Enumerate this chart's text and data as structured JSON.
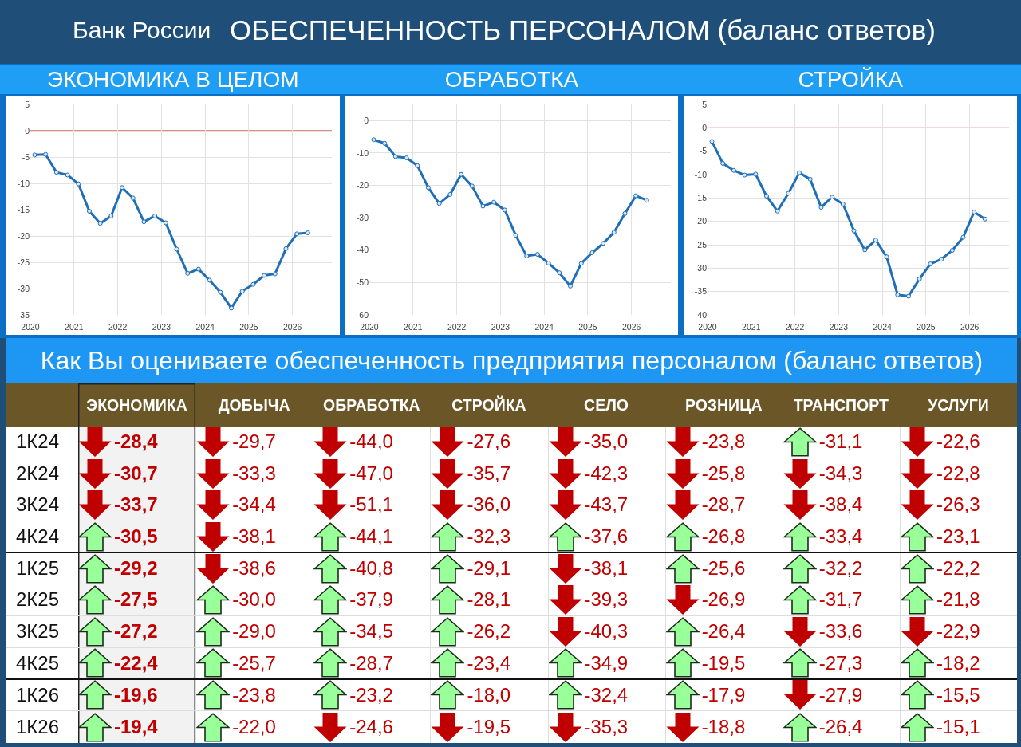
{
  "chart_data": [
    {
      "type": "other",
      "title": "ОБЕСПЕЧЕННОСТЬ ПЕРСОНАЛОМ (баланс ответов)",
      "annotations": [
        "Банк России"
      ]
    },
    {
      "type": "line",
      "title": "ЭКОНОМИКА В ЦЕЛОМ",
      "x": [
        2020.1,
        2020.35,
        2020.6,
        2020.85,
        2021.1,
        2021.35,
        2021.6,
        2021.85,
        2022.1,
        2022.35,
        2022.6,
        2022.85,
        2023.1,
        2023.35,
        2023.6,
        2023.85,
        2024.1,
        2024.35,
        2024.6,
        2024.85,
        2025.1,
        2025.35,
        2025.6,
        2025.85,
        2026.1,
        2026.35
      ],
      "series": [
        {
          "color": "#1f6fb8",
          "values": [
            -4.6,
            -4.5,
            -7.9,
            -8.4,
            -10.1,
            -15.3,
            -17.6,
            -16.2,
            -10.8,
            -12.8,
            -17.3,
            -16.2,
            -17.5,
            -22.5,
            -27.1,
            -26.3,
            -28.4,
            -30.7,
            -33.7,
            -30.5,
            -29.2,
            -27.5,
            -27.2,
            -22.4,
            -19.6,
            -19.4
          ]
        }
      ],
      "xlim": [
        2020,
        2026.9
      ],
      "xticks": [
        2020,
        2021,
        2022,
        2023,
        2024,
        2025,
        2026
      ],
      "ylim": [
        -35,
        5
      ],
      "yticks": [
        -35,
        -30,
        -25,
        -20,
        -15,
        -10,
        -5,
        0,
        5
      ],
      "grid": true,
      "marker": "circle",
      "line_style": "solid",
      "ref_lines": [
        {
          "axis": "y",
          "value": 0,
          "color": "#e06060"
        }
      ]
    },
    {
      "type": "line",
      "title": "ОБРАБОТКА",
      "x": [
        2020.1,
        2020.35,
        2020.6,
        2020.85,
        2021.1,
        2021.35,
        2021.6,
        2021.85,
        2022.1,
        2022.35,
        2022.6,
        2022.85,
        2023.1,
        2023.35,
        2023.6,
        2023.85,
        2024.1,
        2024.35,
        2024.6,
        2024.85,
        2025.1,
        2025.35,
        2025.6,
        2025.85,
        2026.1,
        2026.35
      ],
      "series": [
        {
          "color": "#1f6fb8",
          "values": [
            -5.9,
            -7.0,
            -11.1,
            -11.5,
            -13.9,
            -20.7,
            -25.6,
            -22.8,
            -16.6,
            -20.2,
            -26.4,
            -25.2,
            -27.6,
            -35.4,
            -41.8,
            -41.3,
            -44.0,
            -47.0,
            -51.1,
            -44.1,
            -40.8,
            -37.9,
            -34.5,
            -28.7,
            -23.2,
            -24.6
          ]
        }
      ],
      "xlim": [
        2020,
        2026.9
      ],
      "xticks": [
        2020,
        2021,
        2022,
        2023,
        2024,
        2025,
        2026
      ],
      "ylim": [
        -60,
        5
      ],
      "yticks": [
        -60,
        -50,
        -40,
        -30,
        -20,
        -10,
        0
      ],
      "grid": true,
      "marker": "circle",
      "line_style": "solid",
      "ref_lines": [
        {
          "axis": "y",
          "value": 0,
          "color": "#e06060"
        }
      ]
    },
    {
      "type": "line",
      "title": "СТРОЙКА",
      "x": [
        2020.1,
        2020.35,
        2020.6,
        2020.85,
        2021.1,
        2021.35,
        2021.6,
        2021.85,
        2022.1,
        2022.35,
        2022.6,
        2022.85,
        2023.1,
        2023.35,
        2023.6,
        2023.85,
        2024.1,
        2024.35,
        2024.6,
        2024.85,
        2025.1,
        2025.35,
        2025.6,
        2025.85,
        2026.1,
        2026.35
      ],
      "series": [
        {
          "color": "#1f6fb8",
          "values": [
            -2.9,
            -7.6,
            -9.1,
            -10.1,
            -9.9,
            -14.6,
            -17.8,
            -14.0,
            -9.6,
            -11.0,
            -17.0,
            -14.8,
            -16.3,
            -22.0,
            -26.1,
            -24.0,
            -27.6,
            -35.7,
            -36.0,
            -32.3,
            -29.1,
            -28.1,
            -26.2,
            -23.4,
            -18.0,
            -19.5
          ]
        }
      ],
      "xlim": [
        2020,
        2026.9
      ],
      "xticks": [
        2020,
        2021,
        2022,
        2023,
        2024,
        2025,
        2026
      ],
      "ylim": [
        -40,
        5
      ],
      "yticks": [
        -40,
        -35,
        -30,
        -25,
        -20,
        -15,
        -10,
        -5,
        0,
        5
      ],
      "grid": true,
      "marker": "circle",
      "line_style": "solid",
      "ref_lines": [
        {
          "axis": "y",
          "value": 0,
          "color": "#e06060"
        }
      ]
    },
    {
      "type": "other",
      "title": "Как Вы оцениваете обеспеченность предприятия персоналом (баланс ответов)",
      "categories": [
        "ЭКОНОМИКА",
        "ДОБЫЧА",
        "ОБРАБОТКА",
        "СТРОЙКА",
        "СЕЛО",
        "РОЗНИЦА",
        "ТРАНСПОРТ",
        "УСЛУГИ"
      ],
      "y_categories": [
        "1К24",
        "2К24",
        "3К24",
        "4К24",
        "1К25",
        "2К25",
        "3К25",
        "4К25",
        "1К26",
        "1К26"
      ],
      "cell_labels": [
        [
          "-28,4",
          "-29,7",
          "-44,0",
          "-27,6",
          "-35,0",
          "-23,8",
          "-31,1",
          "-22,6"
        ],
        [
          "-30,7",
          "-33,3",
          "-47,0",
          "-35,7",
          "-42,3",
          "-25,8",
          "-34,3",
          "-22,8"
        ],
        [
          "-33,7",
          "-34,4",
          "-51,1",
          "-36,0",
          "-43,7",
          "-28,7",
          "-38,4",
          "-26,3"
        ],
        [
          "-30,5",
          "-38,1",
          "-44,1",
          "-32,3",
          "-37,6",
          "-26,8",
          "-33,4",
          "-23,1"
        ],
        [
          "-29,2",
          "-38,6",
          "-40,8",
          "-29,1",
          "-38,1",
          "-25,6",
          "-32,2",
          "-22,2"
        ],
        [
          "-27,5",
          "-30,0",
          "-37,9",
          "-28,1",
          "-39,3",
          "-26,9",
          "-31,7",
          "-21,8"
        ],
        [
          "-27,2",
          "-29,0",
          "-34,5",
          "-26,2",
          "-40,3",
          "-26,4",
          "-33,6",
          "-22,9"
        ],
        [
          "-22,4",
          "-25,7",
          "-28,7",
          "-23,4",
          "-34,9",
          "-19,5",
          "-27,3",
          "-18,2"
        ],
        [
          "-19,6",
          "-23,8",
          "-23,2",
          "-18,0",
          "-32,4",
          "-17,9",
          "-27,9",
          "-15,5"
        ],
        [
          "-19,4",
          "-22,0",
          "-24,6",
          "-19,5",
          "-35,3",
          "-18,8",
          "-26,4",
          "-15,1"
        ]
      ],
      "colors": [
        [
          "#c00000",
          "#c00000",
          "#c00000",
          "#c00000",
          "#c00000",
          "#c00000",
          "#99ff99",
          "#c00000"
        ],
        [
          "#c00000",
          "#c00000",
          "#c00000",
          "#c00000",
          "#c00000",
          "#c00000",
          "#c00000",
          "#c00000"
        ],
        [
          "#c00000",
          "#c00000",
          "#c00000",
          "#c00000",
          "#c00000",
          "#c00000",
          "#c00000",
          "#c00000"
        ],
        [
          "#99ff99",
          "#c00000",
          "#99ff99",
          "#99ff99",
          "#99ff99",
          "#99ff99",
          "#99ff99",
          "#99ff99"
        ],
        [
          "#99ff99",
          "#c00000",
          "#99ff99",
          "#99ff99",
          "#c00000",
          "#99ff99",
          "#99ff99",
          "#99ff99"
        ],
        [
          "#99ff99",
          "#99ff99",
          "#99ff99",
          "#99ff99",
          "#c00000",
          "#c00000",
          "#99ff99",
          "#99ff99"
        ],
        [
          "#99ff99",
          "#99ff99",
          "#99ff99",
          "#99ff99",
          "#c00000",
          "#99ff99",
          "#c00000",
          "#c00000"
        ],
        [
          "#99ff99",
          "#99ff99",
          "#99ff99",
          "#99ff99",
          "#99ff99",
          "#99ff99",
          "#99ff99",
          "#99ff99"
        ],
        [
          "#99ff99",
          "#99ff99",
          "#99ff99",
          "#99ff99",
          "#99ff99",
          "#99ff99",
          "#c00000",
          "#99ff99"
        ],
        [
          "#99ff99",
          "#99ff99",
          "#c00000",
          "#c00000",
          "#c00000",
          "#c00000",
          "#99ff99",
          "#99ff99"
        ]
      ]
    }
  ]
}
